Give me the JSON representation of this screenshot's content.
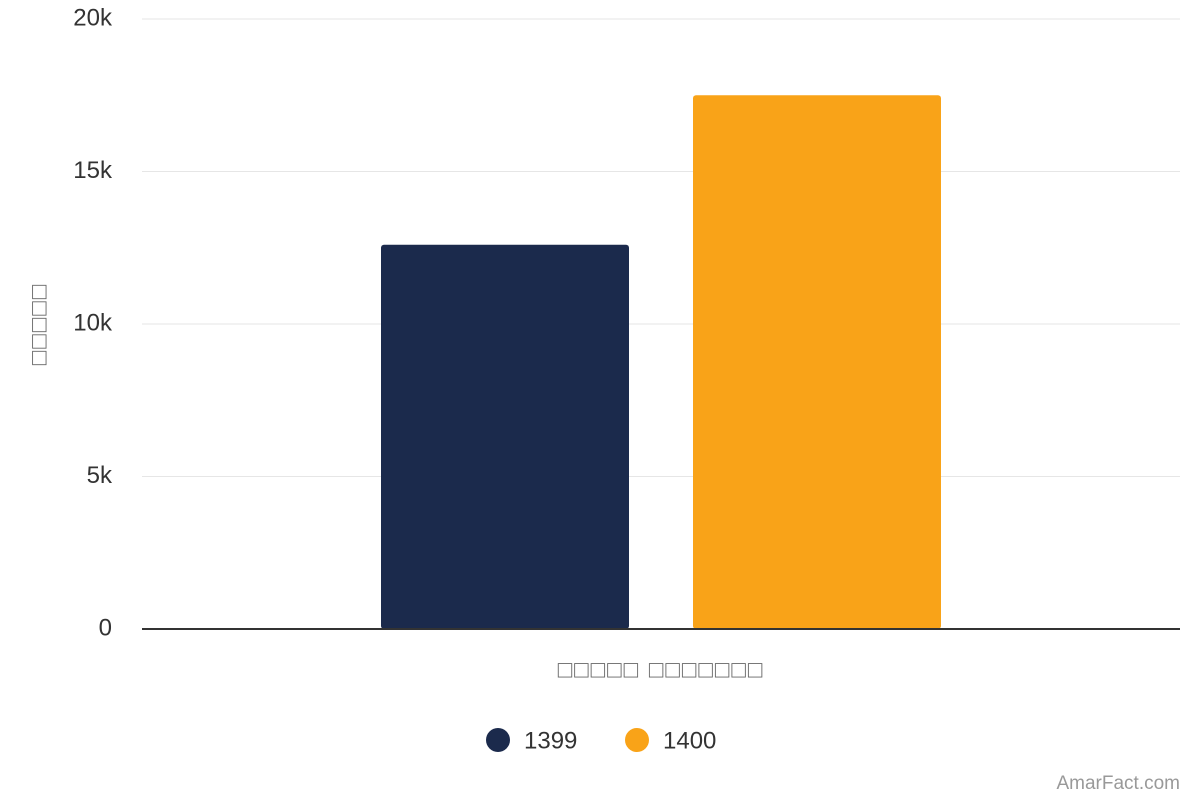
{
  "chart_data": {
    "type": "bar",
    "categories": [
      null
    ],
    "series": [
      {
        "name": "1399",
        "color": "#1b2a4c",
        "values": [
          12600
        ]
      },
      {
        "name": "1400",
        "color": "#f9a318",
        "values": [
          17500
        ]
      }
    ],
    "ylim": [
      0,
      20000
    ],
    "yticks": [
      0,
      {
        "value": 5000,
        "label": "5k"
      },
      {
        "value": 10000,
        "label": "10k"
      },
      {
        "value": 15000,
        "label": "15k"
      },
      {
        "value": 20000,
        "label": "20k"
      }
    ],
    "y_axis_label": "□□□□□",
    "x_axis_label": "□□□□□ □□□□□□□",
    "grid": true,
    "legend": "bottom",
    "credit": "AmarFact.com"
  }
}
